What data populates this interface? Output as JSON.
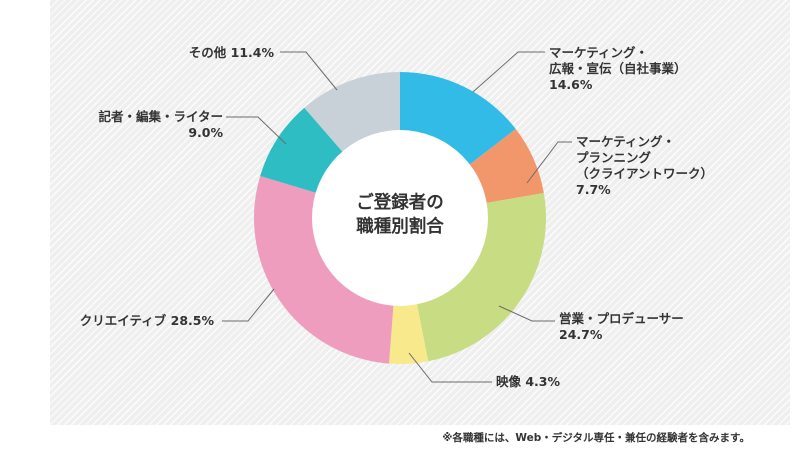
{
  "chart_data": {
    "type": "pie",
    "title": "ご登録者の職種別割合",
    "title_lines": [
      "ご登録者の",
      "職種別割合"
    ],
    "unit": "%",
    "slices": [
      {
        "label_lines": [
          "マーケティング・",
          "広報・宣伝（自社事業）",
          "14.6%"
        ],
        "value": 14.6,
        "color": "#33bbe8"
      },
      {
        "label_lines": [
          "マーケティング・",
          "プランニング",
          "（クライアントワーク）",
          "7.7%"
        ],
        "value": 7.7,
        "color": "#f2976b"
      },
      {
        "label_lines": [
          "営業・プロデューサー",
          "24.7%"
        ],
        "value": 24.7,
        "color": "#c8dc83"
      },
      {
        "label_lines": [
          "映像 4.3%"
        ],
        "value": 4.3,
        "color": "#f8e98c"
      },
      {
        "label_lines": [
          "クリエイティブ 28.5%"
        ],
        "value": 28.5,
        "color": "#ee9dbf"
      },
      {
        "label_lines": [
          "記者・編集・ライター",
          "9.0%"
        ],
        "value": 9.0,
        "color": "#2dbdc3"
      },
      {
        "label_lines": [
          "その他 11.4%"
        ],
        "value": 11.4,
        "color": "#c8d0d8"
      }
    ],
    "legend": "none",
    "footnote": "※各職種には、Web・デジタル専任・兼任の経験者を含みます。"
  }
}
